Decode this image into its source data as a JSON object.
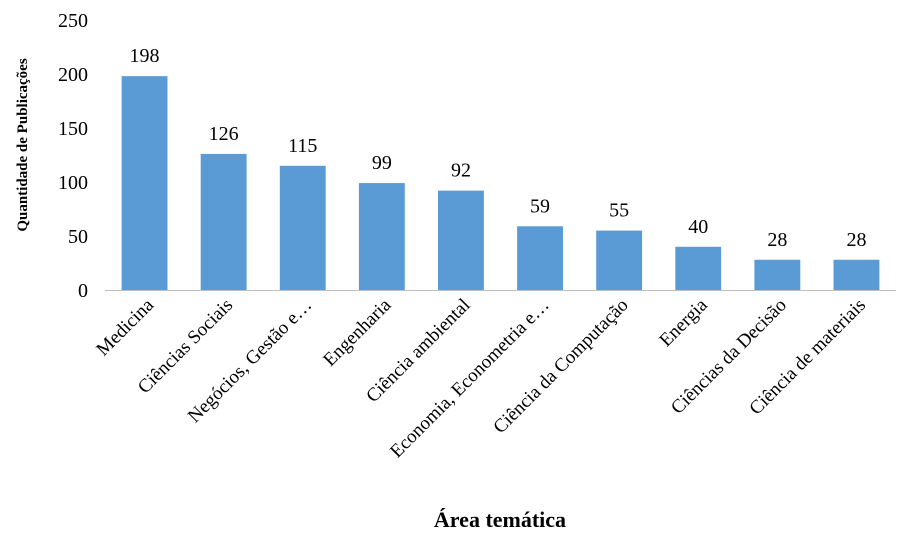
{
  "chart_data": {
    "type": "bar",
    "categories": [
      "Medicina",
      "Ciências Sociais",
      "Negócios, Gestão e…",
      "Engenharia",
      "Ciência ambiental",
      "Economia, Econometria e…",
      "Ciência da Computação",
      "Energia",
      "Ciências da Decisão",
      "Ciência de materiais"
    ],
    "values": [
      198,
      126,
      115,
      99,
      92,
      59,
      55,
      40,
      28,
      28
    ],
    "xlabel": "Área temática",
    "ylabel": "Quantidade de Publicações",
    "ylim": [
      0,
      250
    ],
    "yticks": [
      0,
      50,
      100,
      150,
      200,
      250
    ],
    "grid": false,
    "legend": "none",
    "bar_color": "#5B9BD5",
    "axis_color": "#BFBFBF"
  }
}
